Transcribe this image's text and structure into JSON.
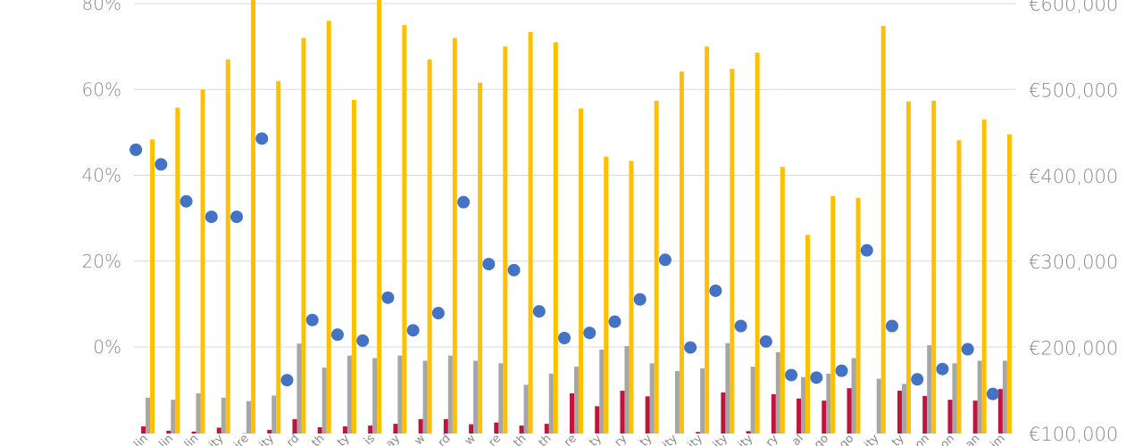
{
  "chart_data": {
    "type": "bar",
    "title": "",
    "xlabel": "",
    "ylabel": "",
    "legend": "none",
    "grid": true,
    "left_axis": {
      "ticks": [
        "0%",
        "20%",
        "40%",
        "60%",
        "80%"
      ],
      "tick_values": [
        0,
        20,
        40,
        60,
        80
      ],
      "range": [
        -20,
        80
      ]
    },
    "right_axis": {
      "ticks": [
        "€100,000",
        "€200,000",
        "€300,000",
        "€400,000",
        "€500,000",
        "€600,000"
      ],
      "tick_values": [
        100000,
        200000,
        300000,
        400000,
        500000,
        600000
      ],
      "range": [
        100000,
        600000
      ]
    },
    "categories": [
      "lin",
      "lin",
      "lin",
      "ity",
      "ire",
      "ity",
      "rd",
      "th",
      "ty",
      "is",
      "ay",
      "w",
      "rd",
      "w",
      "re",
      "th",
      "th",
      "re",
      "ty",
      "ry",
      "ty",
      "ity",
      "ity",
      "ity",
      "ity",
      "ry",
      "al",
      "go",
      "go",
      "ity",
      "ty",
      "on",
      "on",
      "an",
      "im"
    ],
    "series": [
      {
        "axis": "left",
        "color": "#c0143c",
        "values": [
          -18.5,
          -19.5,
          -19.7,
          -18.8,
          -20.1,
          -19.3,
          -16.8,
          -18.7,
          -18.5,
          -18.3,
          -17.9,
          -16.8,
          -16.8,
          -18.0,
          -17.6,
          -18.3,
          -17.9,
          -10.8,
          -13.8,
          -10.2,
          -11.5,
          -21.0,
          -19.8,
          -10.6,
          -19.6,
          -11.0,
          -12.0,
          -12.5,
          -9.6,
          -21.8,
          -10.2,
          -11.4,
          -12.3,
          -12.5,
          -9.8
        ]
      },
      {
        "axis": "left",
        "color": "#a6a6a6",
        "values": [
          -11.8,
          -12.3,
          -10.8,
          -11.8,
          -12.6,
          -11.3,
          0.8,
          -4.8,
          -2.0,
          -2.6,
          -2.0,
          -3.2,
          -2.0,
          -3.2,
          -3.8,
          -8.8,
          -6.2,
          -4.6,
          -0.6,
          0.2,
          -3.8,
          -5.6,
          -5.0,
          0.9,
          -4.6,
          -1.2,
          -7.0,
          -6.2,
          -2.6,
          -7.4,
          -8.6,
          0.4,
          -3.8,
          -3.2,
          -3.2
        ]
      },
      {
        "axis": "right",
        "color": "#ffc000",
        "values": [
          442000,
          479000,
          500000,
          535000,
          620000,
          510000,
          560000,
          580000,
          488000,
          610000,
          575000,
          535000,
          560000,
          508000,
          550000,
          567000,
          555000,
          478000,
          422000,
          417000,
          487000,
          521000,
          550000,
          524000,
          543000,
          410000,
          331000,
          376000,
          374000,
          574000,
          486000,
          487000,
          441000,
          465000,
          448000
        ]
      },
      {
        "axis": "right",
        "type": "scatter",
        "color": "#4472c4",
        "values": [
          430000,
          413000,
          370000,
          352000,
          352000,
          443000,
          162000,
          232000,
          215000,
          208000,
          258000,
          220000,
          240000,
          369000,
          297000,
          290000,
          242000,
          211000,
          217000,
          230000,
          256000,
          302000,
          200000,
          266000,
          225000,
          207000,
          168000,
          165000,
          173000,
          313000,
          225000,
          163000,
          175000,
          198000,
          146000
        ]
      }
    ]
  }
}
